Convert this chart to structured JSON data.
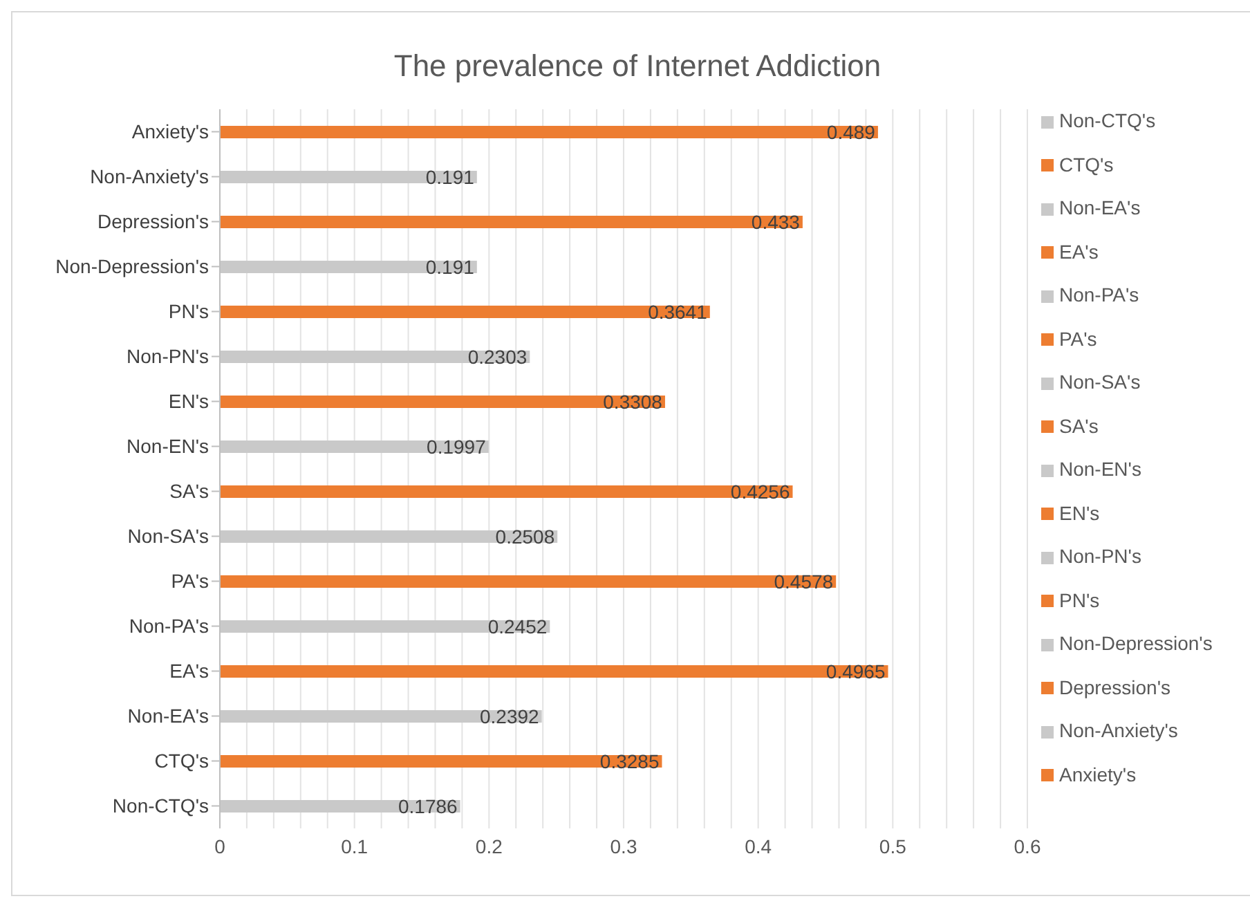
{
  "chart_data": {
    "type": "bar",
    "orientation": "horizontal",
    "stacked": true,
    "title": "The prevalence of Internet Addiction",
    "categories": [
      "Anxiety's",
      "Non-Anxiety's",
      "Depression's",
      "Non-Depression's",
      "PN's",
      "Non-PN's",
      "EN's",
      "Non-EN's",
      "SA's",
      "Non-SA's",
      "PA's",
      "Non-PA's",
      "EA's",
      "Non-EA's",
      "CTQ's",
      "Non-CTQ's"
    ],
    "series": [
      {
        "name": "Non-CTQ's",
        "color": "#c9c9c9",
        "values": [
          null,
          null,
          null,
          null,
          null,
          null,
          null,
          null,
          null,
          null,
          null,
          null,
          null,
          null,
          null,
          0.1786
        ]
      },
      {
        "name": "CTQ's",
        "color": "#ed7d31",
        "values": [
          null,
          null,
          null,
          null,
          null,
          null,
          null,
          null,
          null,
          null,
          null,
          null,
          null,
          null,
          0.3285,
          null
        ]
      },
      {
        "name": "Non-EA's",
        "color": "#c9c9c9",
        "values": [
          null,
          null,
          null,
          null,
          null,
          null,
          null,
          null,
          null,
          null,
          null,
          null,
          null,
          0.2392,
          null,
          null
        ]
      },
      {
        "name": "EA's",
        "color": "#ed7d31",
        "values": [
          null,
          null,
          null,
          null,
          null,
          null,
          null,
          null,
          null,
          null,
          null,
          null,
          0.4965,
          null,
          null,
          null
        ]
      },
      {
        "name": "Non-PA's",
        "color": "#c9c9c9",
        "values": [
          null,
          null,
          null,
          null,
          null,
          null,
          null,
          null,
          null,
          null,
          null,
          0.2452,
          null,
          null,
          null,
          null
        ]
      },
      {
        "name": "PA's",
        "color": "#ed7d31",
        "values": [
          null,
          null,
          null,
          null,
          null,
          null,
          null,
          null,
          null,
          null,
          0.4578,
          null,
          null,
          null,
          null,
          null
        ]
      },
      {
        "name": "Non-SA's",
        "color": "#c9c9c9",
        "values": [
          null,
          null,
          null,
          null,
          null,
          null,
          null,
          null,
          null,
          0.2508,
          null,
          null,
          null,
          null,
          null,
          null
        ]
      },
      {
        "name": "SA's",
        "color": "#ed7d31",
        "values": [
          null,
          null,
          null,
          null,
          null,
          null,
          null,
          null,
          0.4256,
          null,
          null,
          null,
          null,
          null,
          null,
          null
        ]
      },
      {
        "name": "Non-EN's",
        "color": "#c9c9c9",
        "values": [
          null,
          null,
          null,
          null,
          null,
          null,
          null,
          0.1997,
          null,
          null,
          null,
          null,
          null,
          null,
          null,
          null
        ]
      },
      {
        "name": "EN's",
        "color": "#ed7d31",
        "values": [
          null,
          null,
          null,
          null,
          null,
          null,
          0.3308,
          null,
          null,
          null,
          null,
          null,
          null,
          null,
          null,
          null
        ]
      },
      {
        "name": "Non-PN's",
        "color": "#c9c9c9",
        "values": [
          null,
          null,
          null,
          null,
          null,
          0.2303,
          null,
          null,
          null,
          null,
          null,
          null,
          null,
          null,
          null,
          null
        ]
      },
      {
        "name": "PN's",
        "color": "#ed7d31",
        "values": [
          null,
          null,
          null,
          null,
          0.3641,
          null,
          null,
          null,
          null,
          null,
          null,
          null,
          null,
          null,
          null,
          null
        ]
      },
      {
        "name": "Non-Depression's",
        "color": "#c9c9c9",
        "values": [
          null,
          null,
          null,
          0.191,
          null,
          null,
          null,
          null,
          null,
          null,
          null,
          null,
          null,
          null,
          null,
          null
        ]
      },
      {
        "name": "Depression's",
        "color": "#ed7d31",
        "values": [
          null,
          null,
          0.433,
          null,
          null,
          null,
          null,
          null,
          null,
          null,
          null,
          null,
          null,
          null,
          null,
          null
        ]
      },
      {
        "name": "Non-Anxiety's",
        "color": "#c9c9c9",
        "values": [
          null,
          0.191,
          null,
          null,
          null,
          null,
          null,
          null,
          null,
          null,
          null,
          null,
          null,
          null,
          null,
          null
        ]
      },
      {
        "name": "Anxiety's",
        "color": "#ed7d31",
        "values": [
          0.489,
          null,
          null,
          null,
          null,
          null,
          null,
          null,
          null,
          null,
          null,
          null,
          null,
          null,
          null,
          null
        ]
      }
    ],
    "data_labels": true,
    "xlim": [
      0,
      0.6
    ],
    "xticks": [
      0,
      {
        "value": 0.02,
        "label": null
      },
      {
        "value": 0.04,
        "label": null
      },
      {
        "value": 0.06,
        "label": null
      },
      {
        "value": 0.08,
        "label": null
      },
      0.1,
      {
        "value": 0.12,
        "label": null
      },
      {
        "value": 0.14,
        "label": null
      },
      {
        "value": 0.16,
        "label": null
      },
      {
        "value": 0.18,
        "label": null
      },
      0.2,
      {
        "value": 0.22,
        "label": null
      },
      {
        "value": 0.24,
        "label": null
      },
      {
        "value": 0.26,
        "label": null
      },
      {
        "value": 0.28,
        "label": null
      },
      0.3,
      {
        "value": 0.32,
        "label": null
      },
      {
        "value": 0.34,
        "label": null
      },
      {
        "value": 0.36,
        "label": null
      },
      {
        "value": 0.38,
        "label": null
      },
      0.4,
      {
        "value": 0.42,
        "label": null
      },
      {
        "value": 0.44,
        "label": null
      },
      {
        "value": 0.46,
        "label": null
      },
      {
        "value": 0.48,
        "label": null
      },
      0.5,
      {
        "value": 0.52,
        "label": null
      },
      {
        "value": 0.54,
        "label": null
      },
      {
        "value": 0.56,
        "label": null
      },
      {
        "value": 0.58,
        "label": null
      },
      0.6
    ],
    "grid": "x",
    "legend": "right"
  }
}
